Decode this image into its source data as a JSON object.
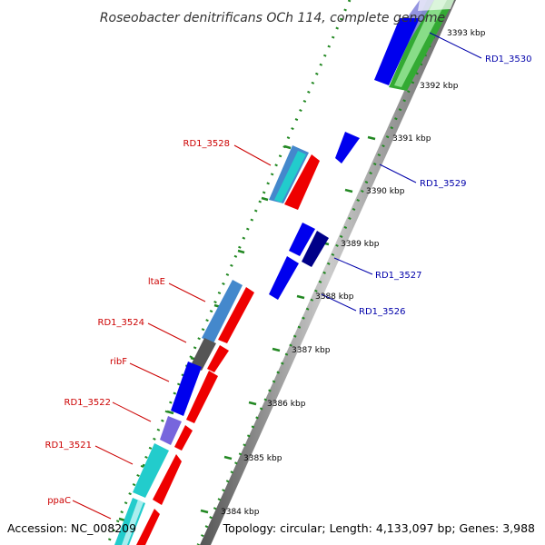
{
  "title": "Roseobacter denitrificans OCh 114, complete genome",
  "accession": "Accession: NC_008209",
  "topology": "Topology: circular; Length: 4,133,097 bp; Genes: 3,988",
  "scale_ticks": [
    "3393 kbp",
    "3392 kbp",
    "3391 kbp",
    "3390 kbp",
    "3389 kbp",
    "3388 kbp",
    "3387 kbp",
    "3386 kbp",
    "3385 kbp",
    "3384 kbp"
  ],
  "labels_left": [
    "RD1_3528",
    "ltaE",
    "RD1_3524",
    "ribF",
    "RD1_3522",
    "RD1_3521",
    "ppaC"
  ],
  "labels_right": [
    "RD1_3530",
    "RD1_3529",
    "RD1_3527",
    "RD1_3526"
  ],
  "colors": {
    "label_left": "#cc0000",
    "label_right": "#0000aa",
    "backbone": "#888888",
    "dots": "#228822",
    "gene_blue": "#0000ee",
    "gene_red": "#ee0000",
    "gene_cyan": "#22cccc",
    "gene_steel": "#4488cc",
    "gene_green": "#33aa33",
    "gene_navy": "#000088",
    "gene_gray": "#555555",
    "gene_violet": "#7766dd"
  }
}
